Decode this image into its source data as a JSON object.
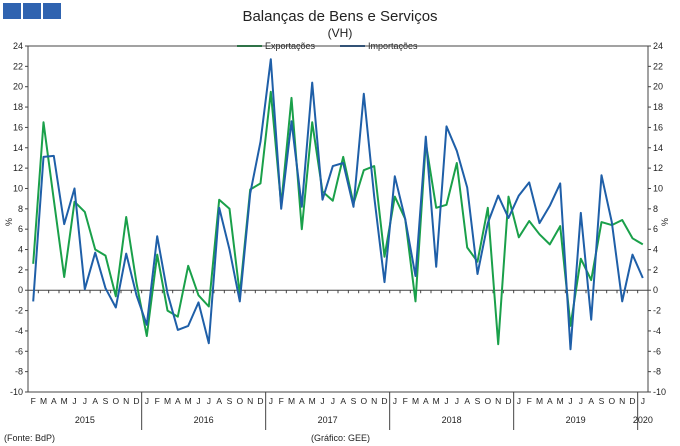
{
  "header": {
    "title": "Balanças de Bens e Serviços",
    "subtitle": "(VH)"
  },
  "footer": {
    "source": "(Fonte: BdP)",
    "credit": "(Gráfico: GEE)"
  },
  "colors": {
    "exportacoes": "#1aa04a",
    "importacoes": "#1f5fa8",
    "logo": "#2f63b0"
  },
  "chart_data": {
    "type": "line",
    "title": "Balanças de Bens e Serviços",
    "subtitle": "(VH)",
    "ylabel_left": "%",
    "ylabel_right": "%",
    "ylim": [
      -10,
      24
    ],
    "yticks": [
      -10,
      -8,
      -6,
      -4,
      -2,
      0,
      2,
      4,
      6,
      8,
      10,
      12,
      14,
      16,
      18,
      20,
      22,
      24
    ],
    "grid": false,
    "legend_position": "top-center",
    "month_labels": [
      "F",
      "M",
      "A",
      "M",
      "J",
      "J",
      "A",
      "S",
      "O",
      "N",
      "D",
      "J",
      "F",
      "M",
      "A",
      "M",
      "J",
      "J",
      "A",
      "S",
      "O",
      "N",
      "D",
      "J",
      "F",
      "M",
      "A",
      "M",
      "J",
      "J",
      "A",
      "S",
      "O",
      "N",
      "D",
      "J",
      "F",
      "M",
      "A",
      "M",
      "J",
      "J",
      "A",
      "S",
      "O",
      "N",
      "D",
      "J",
      "F",
      "M",
      "A",
      "M",
      "J",
      "J",
      "A",
      "S",
      "O",
      "N",
      "D",
      "J"
    ],
    "year_labels": [
      {
        "label": "2015",
        "start": 0,
        "end": 10
      },
      {
        "label": "2016",
        "start": 11,
        "end": 22
      },
      {
        "label": "2017",
        "start": 23,
        "end": 34
      },
      {
        "label": "2018",
        "start": 35,
        "end": 46
      },
      {
        "label": "2019",
        "start": 47,
        "end": 58
      },
      {
        "label": "2020",
        "start": 59,
        "end": 59
      }
    ],
    "series": [
      {
        "name": "Exportações",
        "values": [
          2.6,
          16.5,
          8.9,
          1.3,
          8.7,
          7.7,
          4.0,
          3.4,
          -0.6,
          7.2,
          0.7,
          -4.5,
          3.5,
          -2.0,
          -2.6,
          2.4,
          -0.5,
          -1.6,
          8.9,
          8.0,
          -0.4,
          9.9,
          10.5,
          19.5,
          8.4,
          18.9,
          6.0,
          16.5,
          9.7,
          8.8,
          13.1,
          8.5,
          11.8,
          12.2,
          3.3,
          9.2,
          7.0,
          -1.1,
          14.5,
          8.1,
          8.4,
          12.5,
          4.2,
          2.8,
          8.1,
          -5.3,
          9.2,
          5.2,
          6.8,
          5.5,
          4.5,
          6.3,
          -3.5,
          3.1,
          1.0,
          6.7,
          6.4,
          6.9,
          5.1,
          4.5
        ]
      },
      {
        "name": "Importações",
        "values": [
          -1.1,
          13.1,
          13.2,
          6.5,
          10.0,
          0.1,
          3.7,
          0.2,
          -1.7,
          3.6,
          -0.5,
          -3.4,
          5.3,
          -0.3,
          -3.9,
          -3.5,
          -1.2,
          -5.2,
          8.1,
          4.0,
          -1.1,
          9.5,
          14.6,
          22.7,
          8.0,
          16.6,
          8.2,
          20.4,
          8.9,
          12.2,
          12.5,
          8.2,
          19.3,
          9.2,
          0.8,
          11.2,
          7.0,
          1.4,
          15.1,
          2.3,
          16.1,
          13.7,
          10.1,
          1.6,
          6.6,
          9.3,
          7.1,
          9.3,
          10.6,
          6.6,
          8.3,
          10.5,
          -5.8,
          7.6,
          -2.9,
          11.3,
          6.7,
          -1.1,
          3.5,
          1.2
        ]
      }
    ]
  }
}
